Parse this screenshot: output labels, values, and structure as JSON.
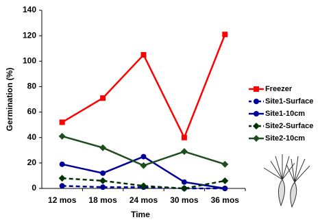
{
  "chart_data": {
    "type": "line",
    "x_label": "Time",
    "y_label": "Germination (%)",
    "categories": [
      "12 mos",
      "18 mos",
      "24 mos",
      "30 mos",
      "36 mos"
    ],
    "ylim": [
      0,
      140
    ],
    "yticks": [
      0,
      20,
      40,
      60,
      80,
      100,
      120,
      140
    ],
    "grid": false,
    "legend": "right",
    "series": [
      {
        "name": "Freezer",
        "color": "#ff0000",
        "marker": "square",
        "dash": false,
        "values": [
          52,
          71,
          105,
          40,
          121
        ]
      },
      {
        "name": "Site1-Surface",
        "color": "#000099",
        "marker": "circle",
        "dash": true,
        "values": [
          2,
          1,
          1,
          0,
          0
        ]
      },
      {
        "name": "Site1-10cm",
        "color": "#000099",
        "marker": "circle",
        "dash": false,
        "values": [
          19,
          12,
          25,
          5,
          0
        ]
      },
      {
        "name": "Site2-Surface",
        "color": "#003300",
        "marker": "diamond",
        "dash": true,
        "values": [
          8,
          6,
          2,
          0,
          6
        ]
      },
      {
        "name": "Site2-10cm",
        "color": "#1f4d1f",
        "marker": "diamond",
        "dash": false,
        "values": [
          41,
          32,
          18,
          29,
          19
        ]
      }
    ]
  }
}
